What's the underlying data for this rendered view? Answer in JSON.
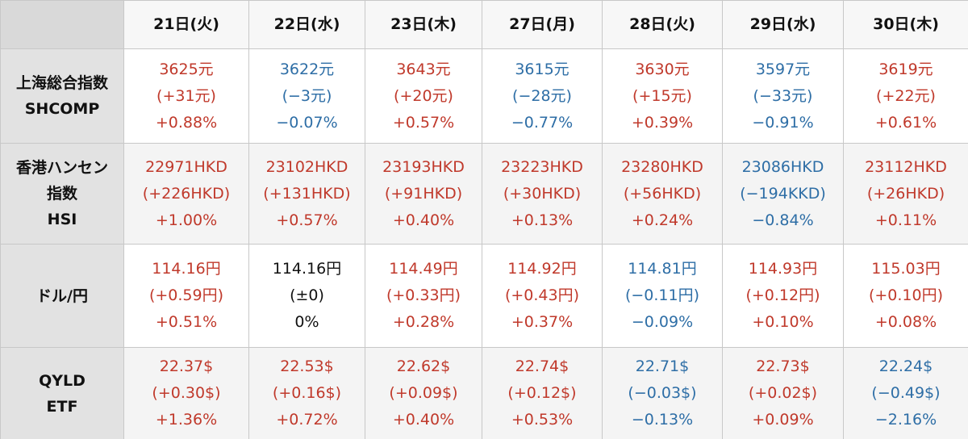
{
  "header": {
    "dates": [
      "21日(火)",
      "22日(水)",
      "23日(木)",
      "27日(月)",
      "28日(火)",
      "29日(水)",
      "30日(木)"
    ]
  },
  "rows": [
    {
      "label_lines": [
        "上海総合指数",
        "SHCOMP"
      ],
      "cells": [
        {
          "dir": "up",
          "price": "3625元",
          "change": "(+31元)",
          "pct": "+0.88%"
        },
        {
          "dir": "down",
          "price": "3622元",
          "change": "(−3元)",
          "pct": "−0.07%"
        },
        {
          "dir": "up",
          "price": "3643元",
          "change": "(+20元)",
          "pct": "+0.57%"
        },
        {
          "dir": "down",
          "price": "3615元",
          "change": "(−28元)",
          "pct": "−0.77%"
        },
        {
          "dir": "up",
          "price": "3630元",
          "change": "(+15元)",
          "pct": "+0.39%"
        },
        {
          "dir": "down",
          "price": "3597元",
          "change": "(−33元)",
          "pct": "−0.91%"
        },
        {
          "dir": "up",
          "price": "3619元",
          "change": "(+22元)",
          "pct": "+0.61%"
        }
      ]
    },
    {
      "label_lines": [
        "香港ハンセン",
        "指数",
        "HSI"
      ],
      "cells": [
        {
          "dir": "up",
          "price": "22971HKD",
          "change": "(+226HKD)",
          "pct": "+1.00%"
        },
        {
          "dir": "up",
          "price": "23102HKD",
          "change": "(+131HKD)",
          "pct": "+0.57%"
        },
        {
          "dir": "up",
          "price": "23193HKD",
          "change": "(+91HKD)",
          "pct": "+0.40%"
        },
        {
          "dir": "up",
          "price": "23223HKD",
          "change": "(+30HKD)",
          "pct": "+0.13%"
        },
        {
          "dir": "up",
          "price": "23280HKD",
          "change": "(+56HKD)",
          "pct": "+0.24%"
        },
        {
          "dir": "down",
          "price": "23086HKD",
          "change": "(−194KKD)",
          "pct": "−0.84%"
        },
        {
          "dir": "up",
          "price": "23112HKD",
          "change": "(+26HKD)",
          "pct": "+0.11%"
        }
      ]
    },
    {
      "label_lines": [
        "ドル/円"
      ],
      "cells": [
        {
          "dir": "up",
          "price": "114.16円",
          "change": "(+0.59円)",
          "pct": "+0.51%"
        },
        {
          "dir": "flat",
          "price": "114.16円",
          "change": "(±0)",
          "pct": "0%"
        },
        {
          "dir": "up",
          "price": "114.49円",
          "change": "(+0.33円)",
          "pct": "+0.28%"
        },
        {
          "dir": "up",
          "price": "114.92円",
          "change": "(+0.43円)",
          "pct": "+0.37%"
        },
        {
          "dir": "down",
          "price": "114.81円",
          "change": "(−0.11円)",
          "pct": "−0.09%"
        },
        {
          "dir": "up",
          "price": "114.93円",
          "change": "(+0.12円)",
          "pct": "+0.10%"
        },
        {
          "dir": "up",
          "price": "115.03円",
          "change": "(+0.10円)",
          "pct": "+0.08%"
        }
      ]
    },
    {
      "label_lines": [
        "QYLD",
        "ETF"
      ],
      "cells": [
        {
          "dir": "up",
          "price": "22.37$",
          "change": "(+0.30$)",
          "pct": "+1.36%"
        },
        {
          "dir": "up",
          "price": "22.53$",
          "change": "(+0.16$)",
          "pct": "+0.72%"
        },
        {
          "dir": "up",
          "price": "22.62$",
          "change": "(+0.09$)",
          "pct": "+0.40%"
        },
        {
          "dir": "up",
          "price": "22.74$",
          "change": "(+0.12$)",
          "pct": "+0.53%"
        },
        {
          "dir": "down",
          "price": "22.71$",
          "change": "(−0.03$)",
          "pct": "−0.13%"
        },
        {
          "dir": "up",
          "price": "22.73$",
          "change": "(+0.02$)",
          "pct": "+0.09%"
        },
        {
          "dir": "down",
          "price": "22.24$",
          "change": "(−0.49$)",
          "pct": "−2.16%"
        }
      ]
    }
  ],
  "colors": {
    "up": "#c0392b",
    "down": "#2e6ea6",
    "flat": "#111111"
  }
}
